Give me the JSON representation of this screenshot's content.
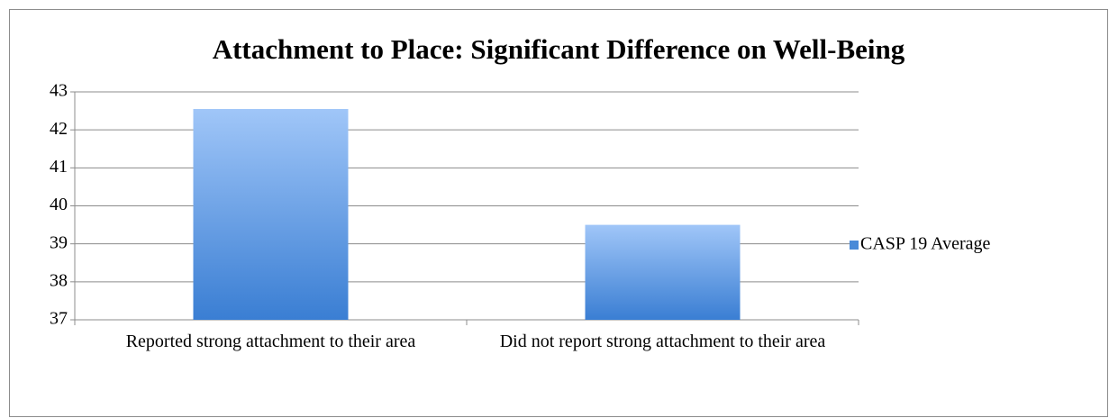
{
  "chart_data": {
    "type": "bar",
    "title": "Attachment to Place: Significant Difference on Well-Being",
    "categories": [
      "Reported strong attachment to their area",
      "Did not report strong attachment to their area"
    ],
    "series": [
      {
        "name": "CASP 19 Average",
        "color": "#4a8ad8",
        "values": [
          42.55,
          39.5
        ]
      }
    ],
    "ylim": [
      37,
      43
    ],
    "yticks": [
      37,
      38,
      39,
      40,
      41,
      42,
      43
    ],
    "grid": true,
    "legend": "right"
  }
}
